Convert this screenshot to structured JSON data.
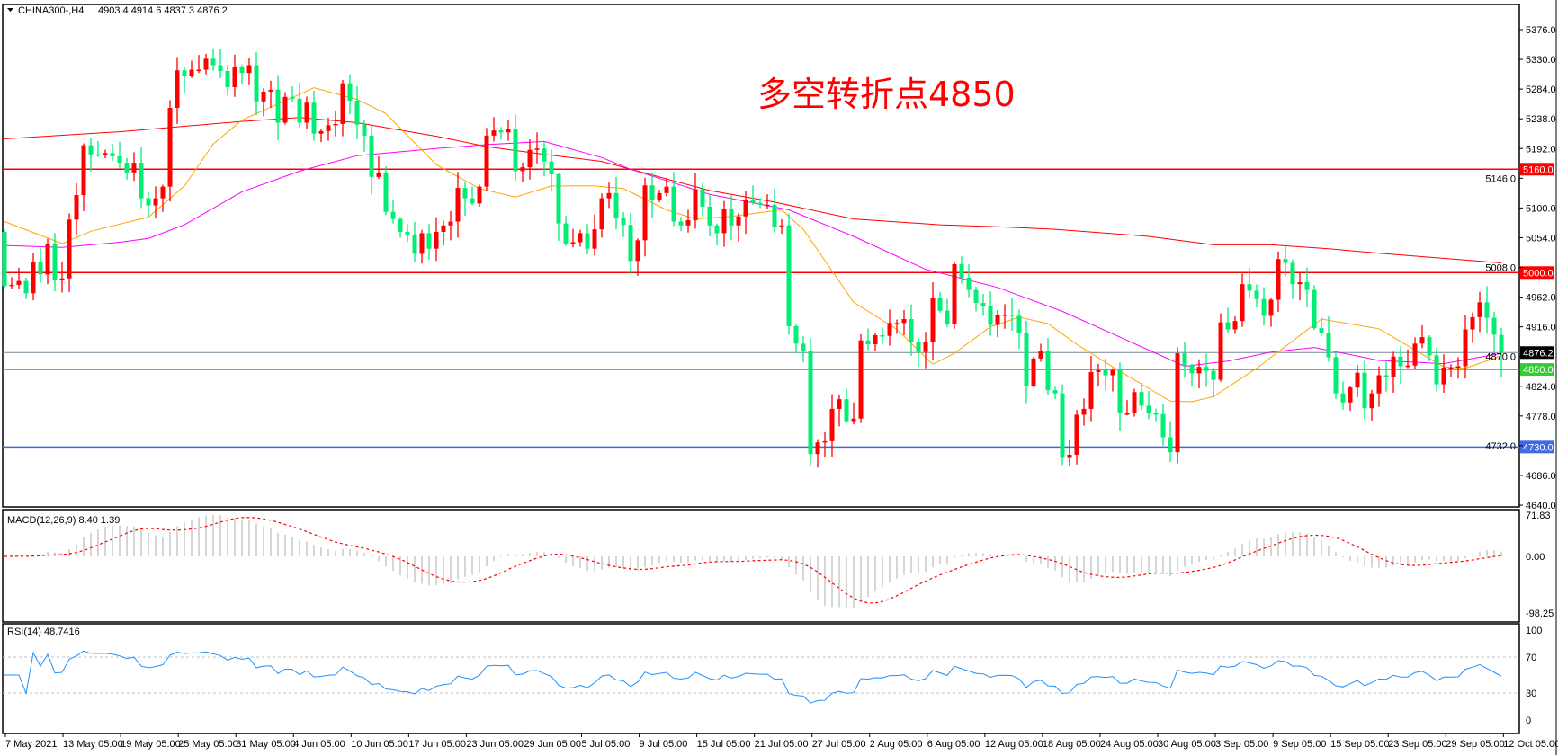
{
  "header": {
    "symbol": "CHINA300-,H4",
    "ohlc": "4903.4 4914.6 4837.3 4876.2"
  },
  "annotation": "多空转折点4850",
  "colors": {
    "bull": "#ff0000",
    "bear": "#00ee76",
    "ma_fast": "#ffa500",
    "ma_mid": "#ff00ff",
    "ma_slow": "#ff0000",
    "line_5160": "#ff0000",
    "line_5000": "#ff0000",
    "line_4850": "#33cc33",
    "line_4730": "#4169e1",
    "price_line": "#778899",
    "macd_hist": "#c0c0c0",
    "macd_signal": "#ff0000",
    "rsi": "#1e90ff"
  },
  "price_axis": {
    "ticks": [
      5376.0,
      5330.0,
      5284.0,
      5238.0,
      5192.0,
      5146.0,
      5100.0,
      5054.0,
      5008.0,
      4962.0,
      4916.0,
      4870.0,
      4824.0,
      4778.0,
      4732.0,
      4686.0,
      4640.0
    ],
    "range": [
      4640,
      5376
    ]
  },
  "levels": [
    {
      "value": 5160.0,
      "label": "5160.0",
      "color": "#ff0000"
    },
    {
      "value": 5000.0,
      "label": "5000.0",
      "color": "#ff0000"
    },
    {
      "value": 4876.2,
      "label": "4876.2",
      "color": "#000000",
      "line": "#778899"
    },
    {
      "value": 4850.0,
      "label": "4850.0",
      "color": "#33cc33"
    },
    {
      "value": 4730.0,
      "label": "4730.0",
      "color": "#4169e1"
    }
  ],
  "chart_data": {
    "type": "candlestick",
    "first_open": 5063,
    "closes": [
      4979,
      4981,
      4987,
      4968,
      5016,
      4997,
      5045,
      4988,
      4991,
      5082,
      5120,
      5197,
      5183,
      5182,
      5185,
      5180,
      5170,
      5155,
      5170,
      5115,
      5104,
      5115,
      5133,
      5255,
      5313,
      5304,
      5314,
      5314,
      5331,
      5321,
      5312,
      5287,
      5319,
      5309,
      5321,
      5265,
      5280,
      5283,
      5232,
      5272,
      5269,
      5232,
      5263,
      5215,
      5219,
      5228,
      5230,
      5293,
      5266,
      5229,
      5212,
      5148,
      5155,
      5094,
      5083,
      5063,
      5058,
      5029,
      5061,
      5037,
      5063,
      5073,
      5079,
      5131,
      5115,
      5107,
      5133,
      5212,
      5220,
      5217,
      5222,
      5157,
      5163,
      5190,
      5192,
      5172,
      5152,
      5076,
      5044,
      5047,
      5061,
      5037,
      5067,
      5115,
      5123,
      5084,
      5074,
      5018,
      5050,
      5135,
      5112,
      5123,
      5133,
      5079,
      5073,
      5081,
      5129,
      5102,
      5073,
      5061,
      5099,
      5073,
      5087,
      5112,
      5108,
      5105,
      5105,
      5071,
      5073,
      4917,
      4890,
      4878,
      4719,
      4737,
      4739,
      4789,
      4804,
      4770,
      4774,
      4895,
      4889,
      4903,
      4902,
      4922,
      4922,
      4928,
      4892,
      4877,
      4892,
      4960,
      4941,
      4920,
      5013,
      4992,
      4973,
      4953,
      4948,
      4919,
      4934,
      4935,
      4933,
      4907,
      4825,
      4867,
      4878,
      4818,
      4813,
      4713,
      4718,
      4780,
      4789,
      4846,
      4849,
      4841,
      4849,
      4782,
      4782,
      4815,
      4794,
      4782,
      4781,
      4745,
      4722,
      4875,
      4856,
      4844,
      4854,
      4848,
      4834,
      4923,
      4912,
      4925,
      4982,
      4972,
      4959,
      4933,
      4958,
      5021,
      5015,
      4982,
      4985,
      4973,
      4914,
      4907,
      4869,
      4813,
      4799,
      4822,
      4845,
      4790,
      4813,
      4841,
      4839,
      4870,
      4855,
      4856,
      4890,
      4900,
      4872,
      4827,
      4853,
      4853,
      4855,
      4912,
      4931,
      4954,
      4930,
      4904,
      4876.2
    ],
    "last_candle": {
      "open": 4903.4,
      "high": 4914.6,
      "low": 4837.3,
      "close": 4876.2
    },
    "moving_averages": [
      {
        "key": "ma_slow",
        "points": [
          [
            0,
            5207
          ],
          [
            16,
            5218
          ],
          [
            33,
            5234
          ],
          [
            41,
            5240
          ],
          [
            49,
            5232
          ],
          [
            60,
            5211
          ],
          [
            67,
            5195
          ],
          [
            75,
            5183
          ],
          [
            83,
            5172
          ],
          [
            91,
            5148
          ],
          [
            98,
            5127
          ],
          [
            107,
            5109
          ],
          [
            118,
            5083
          ],
          [
            130,
            5074
          ],
          [
            138,
            5071
          ],
          [
            146,
            5067
          ],
          [
            159,
            5056
          ],
          [
            168,
            5043
          ],
          [
            176,
            5043
          ],
          [
            184,
            5037
          ],
          [
            191,
            5030
          ],
          [
            208,
            5015
          ]
        ]
      },
      {
        "key": "ma_mid",
        "points": [
          [
            0,
            5042
          ],
          [
            8,
            5039
          ],
          [
            16,
            5047
          ],
          [
            20,
            5053
          ],
          [
            25,
            5074
          ],
          [
            33,
            5125
          ],
          [
            41,
            5157
          ],
          [
            49,
            5181
          ],
          [
            60,
            5192
          ],
          [
            67,
            5198
          ],
          [
            75,
            5203
          ],
          [
            83,
            5178
          ],
          [
            87,
            5160
          ],
          [
            98,
            5121
          ],
          [
            109,
            5097
          ],
          [
            118,
            5056
          ],
          [
            128,
            5005
          ],
          [
            138,
            4977
          ],
          [
            147,
            4940
          ],
          [
            155,
            4900
          ],
          [
            164,
            4855
          ],
          [
            170,
            4863
          ],
          [
            176,
            4877
          ],
          [
            182,
            4884
          ],
          [
            191,
            4864
          ],
          [
            200,
            4859
          ],
          [
            208,
            4875
          ]
        ]
      },
      {
        "key": "ma_fast",
        "points": [
          [
            0,
            5079
          ],
          [
            8,
            5045
          ],
          [
            12,
            5064
          ],
          [
            20,
            5086
          ],
          [
            25,
            5134
          ],
          [
            29,
            5199
          ],
          [
            33,
            5236
          ],
          [
            41,
            5276
          ],
          [
            43,
            5286
          ],
          [
            49,
            5268
          ],
          [
            53,
            5246
          ],
          [
            60,
            5167
          ],
          [
            66,
            5130
          ],
          [
            71,
            5117
          ],
          [
            76,
            5134
          ],
          [
            82,
            5134
          ],
          [
            86,
            5130
          ],
          [
            92,
            5097
          ],
          [
            96,
            5083
          ],
          [
            101,
            5087
          ],
          [
            108,
            5097
          ],
          [
            111,
            5067
          ],
          [
            118,
            4954
          ],
          [
            124,
            4912
          ],
          [
            129,
            4858
          ],
          [
            132,
            4875
          ],
          [
            137,
            4916
          ],
          [
            141,
            4931
          ],
          [
            145,
            4921
          ],
          [
            149,
            4889
          ],
          [
            155,
            4847
          ],
          [
            162,
            4801
          ],
          [
            165,
            4800
          ],
          [
            168,
            4808
          ],
          [
            174,
            4852
          ],
          [
            183,
            4928
          ],
          [
            191,
            4913
          ],
          [
            200,
            4854
          ],
          [
            203,
            4852
          ],
          [
            208,
            4871
          ]
        ]
      }
    ],
    "x_tick_labels": [
      "7 May 2021",
      "13 May 05:00",
      "19 May 05:00",
      "25 May 05:00",
      "31 May 05:00",
      "4 Jun 05:00",
      "10 Jun 05:00",
      "17 Jun 05:00",
      "23 Jun 05:00",
      "29 Jun 05:00",
      "5 Jul 05:00",
      "9 Jul 05:00",
      "15 Jul 05:00",
      "21 Jul 05:00",
      "27 Jul 05:00",
      "2 Aug 05:00",
      "6 Aug 05:00",
      "12 Aug 05:00",
      "18 Aug 05:00",
      "24 Aug 05:00",
      "30 Aug 05:00",
      "3 Sep 05:00",
      "9 Sep 05:00",
      "15 Sep 05:00",
      "23 Sep 05:00",
      "29 Sep 05:00",
      "12 Oct 05:00"
    ]
  },
  "macd": {
    "label": "MACD(12,26,9) 8.40 1.39",
    "axis": [
      "71.83",
      "0.00",
      "-98.25"
    ],
    "range": [
      -98.25,
      71.83
    ]
  },
  "rsi": {
    "label": "RSI(14) 48.7416",
    "axis": [
      "100",
      "70",
      "30",
      "0"
    ],
    "levels": [
      70,
      30
    ]
  }
}
